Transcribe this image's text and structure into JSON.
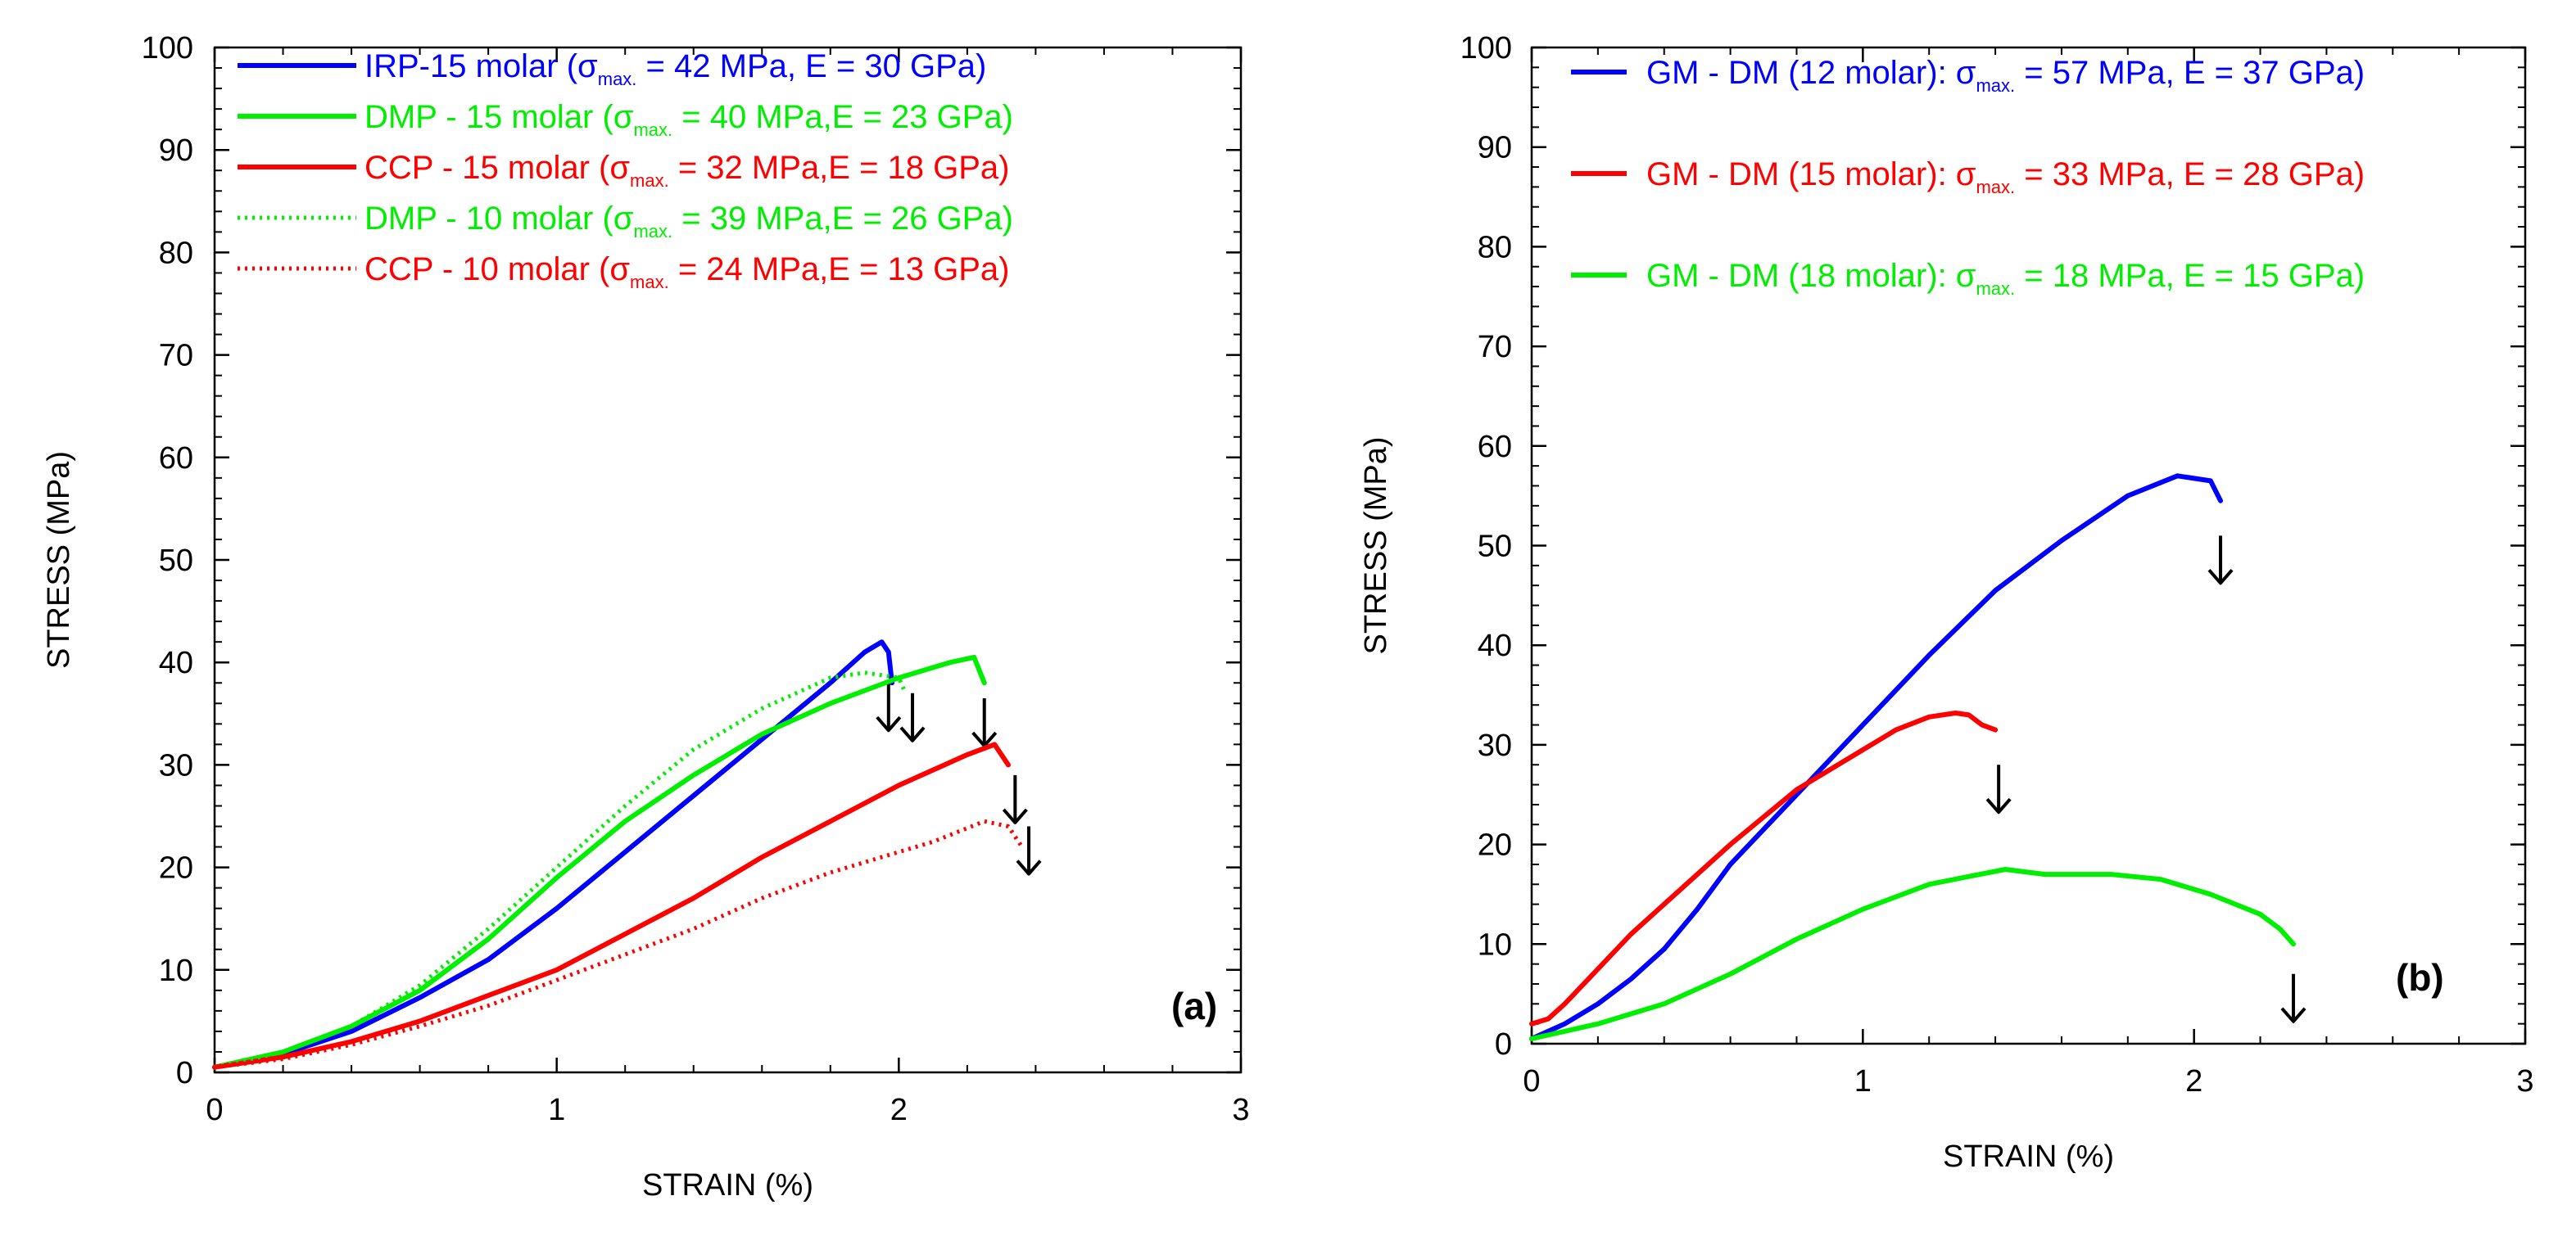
{
  "chart_data": [
    {
      "type": "line",
      "panel_label": "(a)",
      "xlabel": "STRAIN (%)",
      "ylabel": "STRESS (MPa)",
      "xlim": [
        0,
        3
      ],
      "ylim": [
        0,
        100
      ],
      "xticks": [
        0,
        1,
        2,
        3
      ],
      "yticks": [
        0,
        10,
        20,
        30,
        40,
        50,
        60,
        70,
        80,
        90,
        100
      ],
      "grid": false,
      "legend_position": "top-left",
      "series": [
        {
          "name": "IRP-15 molar",
          "legend": {
            "prefix": "IRP-15 molar (",
            "sub": "max.",
            "suffix": " = 42 MPa, E = 30 GPa)"
          },
          "color": "#0000ff",
          "style": "solid",
          "x": [
            0,
            0.2,
            0.4,
            0.6,
            0.8,
            1.0,
            1.2,
            1.4,
            1.6,
            1.8,
            1.9,
            1.95,
            1.97,
            1.98
          ],
          "y": [
            0.5,
            1.8,
            4,
            7.3,
            11,
            16,
            21.5,
            27,
            32.5,
            38,
            41,
            42,
            41,
            38
          ],
          "failure": {
            "x": 1.97,
            "y": 38
          }
        },
        {
          "name": "DMP - 15 molar",
          "legend": {
            "prefix": "DMP - 15 molar (",
            "sub": "max.",
            "suffix": " = 40 MPa,E = 23 GPa)"
          },
          "color": "#00ee00",
          "style": "solid",
          "x": [
            0,
            0.2,
            0.4,
            0.6,
            0.8,
            1.0,
            1.2,
            1.4,
            1.6,
            1.8,
            2.0,
            2.15,
            2.22,
            2.25
          ],
          "y": [
            0.5,
            2,
            4.5,
            8,
            13,
            19,
            24.5,
            29,
            33,
            36,
            38.5,
            40,
            40.5,
            38
          ],
          "failure": {
            "x": 2.25,
            "y": 36.5
          }
        },
        {
          "name": "CCP - 15 molar",
          "legend": {
            "prefix": "CCP - 15 molar (",
            "sub": "max.",
            "suffix": " = 32 MPa,E = 18 GPa)"
          },
          "color": "#ff0000",
          "style": "solid",
          "x": [
            0,
            0.2,
            0.4,
            0.6,
            0.8,
            1.0,
            1.2,
            1.4,
            1.6,
            1.8,
            2.0,
            2.2,
            2.28,
            2.32
          ],
          "y": [
            0.5,
            1.5,
            3,
            5,
            7.5,
            10,
            13.5,
            17,
            21,
            24.5,
            28,
            31,
            32,
            30
          ],
          "failure": {
            "x": 2.34,
            "y": 29
          }
        },
        {
          "name": "DMP - 10 molar",
          "legend": {
            "prefix": "DMP - 10 molar (",
            "sub": "max.",
            "suffix": " = 39 MPa,E = 26 GPa)"
          },
          "color": "#00ee00",
          "style": "dotted",
          "x": [
            0,
            0.2,
            0.4,
            0.6,
            0.8,
            1.0,
            1.2,
            1.4,
            1.6,
            1.8,
            1.9,
            2.0,
            2.02
          ],
          "y": [
            0.5,
            2,
            4.5,
            8.5,
            14,
            20,
            26,
            31.5,
            35.5,
            38.5,
            39,
            38.5,
            37
          ],
          "failure": {
            "x": 2.04,
            "y": 37
          }
        },
        {
          "name": "CCP - 10 molar",
          "legend": {
            "prefix": "CCP - 10 molar (",
            "sub": "max.",
            "suffix": " = 24 MPa,E = 13 GPa)"
          },
          "color": "#ff0000",
          "style": "dotted",
          "x": [
            0,
            0.2,
            0.4,
            0.6,
            0.8,
            1.0,
            1.2,
            1.4,
            1.6,
            1.8,
            2.0,
            2.1,
            2.25,
            2.32,
            2.36
          ],
          "y": [
            0.5,
            1.3,
            2.7,
            4.5,
            6.5,
            9,
            11.5,
            14,
            17,
            19.5,
            21.5,
            22.5,
            24.5,
            24,
            22
          ],
          "failure": {
            "x": 2.38,
            "y": 24
          }
        }
      ]
    },
    {
      "type": "line",
      "panel_label": "(b)",
      "xlabel": "STRAIN (%)",
      "ylabel": "STRESS (MPa)",
      "xlim": [
        0,
        3
      ],
      "ylim": [
        0,
        100
      ],
      "xticks": [
        0,
        1,
        2,
        3
      ],
      "yticks": [
        0,
        10,
        20,
        30,
        40,
        50,
        60,
        70,
        80,
        90,
        100
      ],
      "grid": false,
      "legend_position": "top-right",
      "series": [
        {
          "name": "GM - DM (12 molar)",
          "legend": {
            "prefix": "GM - DM (12 molar): ",
            "sub": "max.",
            "suffix": " = 57 MPa, E = 37 GPa)"
          },
          "color": "#0000ff",
          "style": "solid",
          "x": [
            0,
            0.1,
            0.2,
            0.3,
            0.4,
            0.5,
            0.6,
            0.8,
            1.0,
            1.2,
            1.4,
            1.6,
            1.8,
            1.95,
            2.05,
            2.08
          ],
          "y": [
            0.5,
            2,
            4,
            6.5,
            9.5,
            13.5,
            18,
            25,
            32,
            39,
            45.5,
            50.5,
            55,
            57,
            56.5,
            54.5
          ],
          "failure": {
            "x": 2.08,
            "y": 51
          }
        },
        {
          "name": "GM - DM (15 molar)",
          "legend": {
            "prefix": "GM - DM (15 molar): ",
            "sub": "max.",
            "suffix": " = 33 MPa, E = 28 GPa)"
          },
          "color": "#ff0000",
          "style": "solid",
          "x": [
            0,
            0.05,
            0.1,
            0.2,
            0.3,
            0.4,
            0.6,
            0.8,
            1.0,
            1.1,
            1.2,
            1.28,
            1.32,
            1.36,
            1.4
          ],
          "y": [
            2,
            2.5,
            4,
            7.5,
            11,
            14,
            20,
            25.5,
            29.5,
            31.5,
            32.8,
            33.2,
            33,
            32,
            31.5
          ],
          "failure": {
            "x": 1.41,
            "y": 28
          }
        },
        {
          "name": "GM - DM (18 molar)",
          "legend": {
            "prefix": "GM - DM (18 molar): ",
            "sub": "max.",
            "suffix": " = 18 MPa, E = 15 GPa)"
          },
          "color": "#00ee00",
          "style": "solid",
          "x": [
            0,
            0.2,
            0.4,
            0.6,
            0.8,
            1.0,
            1.2,
            1.43,
            1.55,
            1.75,
            1.9,
            2.05,
            2.2,
            2.26,
            2.3
          ],
          "y": [
            0.5,
            2,
            4,
            7,
            10.5,
            13.5,
            16,
            17.5,
            17,
            17,
            16.5,
            15,
            13,
            11.5,
            10
          ],
          "failure": {
            "x": 2.3,
            "y": 7
          }
        }
      ]
    }
  ]
}
